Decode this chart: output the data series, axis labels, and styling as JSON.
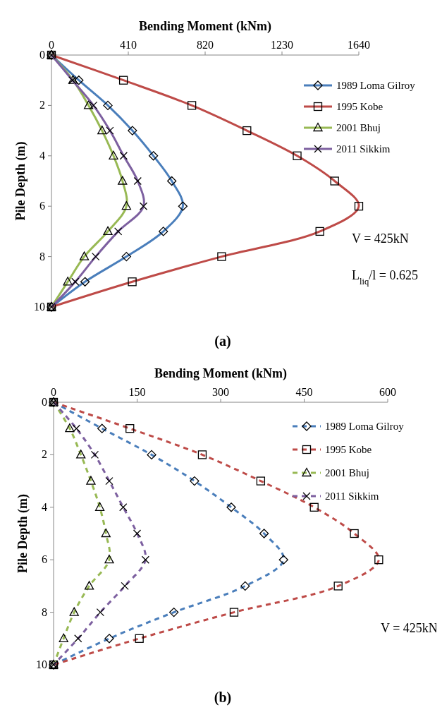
{
  "chart_data": [
    {
      "type": "line",
      "title": "(a)",
      "xlabel": "Bending Moment (kNm)",
      "ylabel": "Pile Depth (m)",
      "xlim": [
        0,
        1640
      ],
      "xticks": [
        0,
        410,
        820,
        1230,
        1640
      ],
      "ylim": [
        10,
        0
      ],
      "yticks": [
        0,
        2,
        4,
        6,
        8,
        10
      ],
      "legend": "top right",
      "line_style": "solid",
      "annotations": [
        "V = 425kN",
        "L$_{liq}$/l = 0.625"
      ],
      "series": [
        {
          "name": "1989 Loma Gilroy",
          "color": "#4a7ebb",
          "marker": "diamond",
          "x": [
            0,
            146,
            301,
            432,
            544,
            642,
            701,
            597,
            400,
            179,
            0
          ],
          "values": [
            0,
            1,
            2,
            3,
            4,
            5,
            6,
            7,
            8,
            9,
            10
          ]
        },
        {
          "name": "1995 Kobe",
          "color": "#be4b48",
          "marker": "square",
          "x": [
            0,
            384,
            749,
            1043,
            1311,
            1511,
            1640,
            1432,
            908,
            431,
            0
          ],
          "values": [
            0,
            1,
            2,
            3,
            4,
            5,
            6,
            7,
            8,
            9,
            10
          ]
        },
        {
          "name": "2001 Bhuj",
          "color": "#98b954",
          "marker": "triangle",
          "x": [
            0,
            115,
            198,
            270,
            331,
            379,
            400,
            301,
            175,
            87,
            0
          ],
          "values": [
            0,
            1,
            2,
            3,
            4,
            5,
            6,
            7,
            8,
            9,
            10
          ]
        },
        {
          "name": "2011 Sikkim",
          "color": "#7d60a0",
          "marker": "cross",
          "x": [
            0,
            112,
            224,
            312,
            385,
            460,
            491,
            356,
            236,
            127,
            0
          ],
          "values": [
            0,
            1,
            2,
            3,
            4,
            5,
            6,
            7,
            8,
            9,
            10
          ]
        }
      ]
    },
    {
      "type": "line",
      "title": "(b)",
      "xlabel": "Bending Moment (kNm)",
      "ylabel": "Pile Depth (m)",
      "xlim": [
        0,
        600
      ],
      "xticks": [
        0,
        150,
        300,
        450,
        600
      ],
      "ylim": [
        10,
        0
      ],
      "yticks": [
        0,
        2,
        4,
        6,
        8,
        10
      ],
      "legend": "top right",
      "line_style": "dashed",
      "annotations": [
        "V = 425kN"
      ],
      "series": [
        {
          "name": "1989 Loma Gilroy",
          "color": "#4a7ebb",
          "marker": "diamond",
          "x": [
            0,
            87,
            176,
            253,
            319,
            378,
            413,
            344,
            216,
            100,
            0
          ],
          "values": [
            0,
            1,
            2,
            3,
            4,
            5,
            6,
            7,
            8,
            9,
            10
          ]
        },
        {
          "name": "1995 Kobe",
          "color": "#be4b48",
          "marker": "square",
          "x": [
            0,
            137,
            267,
            372,
            468,
            540,
            584,
            511,
            324,
            154,
            0
          ],
          "values": [
            0,
            1,
            2,
            3,
            4,
            5,
            6,
            7,
            8,
            9,
            10
          ]
        },
        {
          "name": "2001 Bhuj",
          "color": "#98b954",
          "marker": "triangle",
          "x": [
            0,
            29,
            49,
            67,
            83,
            94,
            100,
            64,
            37,
            18,
            0
          ],
          "values": [
            0,
            1,
            2,
            3,
            4,
            5,
            6,
            7,
            8,
            9,
            10
          ]
        },
        {
          "name": "2011 Sikkim",
          "color": "#7d60a0",
          "marker": "cross",
          "x": [
            0,
            41,
            74,
            100,
            125,
            150,
            165,
            128,
            84,
            44,
            0
          ],
          "values": [
            0,
            1,
            2,
            3,
            4,
            5,
            6,
            7,
            8,
            9,
            10
          ]
        }
      ]
    }
  ]
}
